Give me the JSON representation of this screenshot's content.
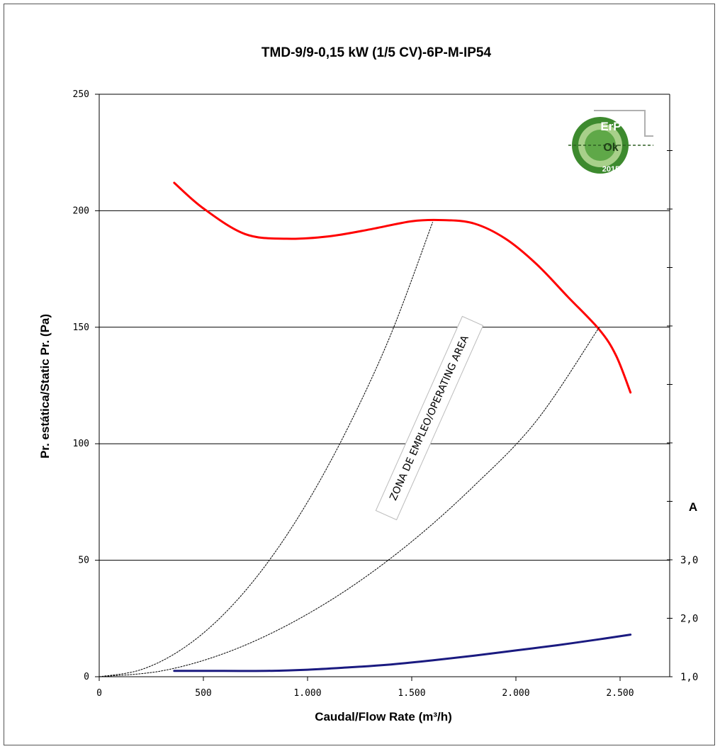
{
  "chart_data": {
    "type": "line",
    "title": "TMD-9/9-0,15 kW (1/5 CV)-6P-M-IP54",
    "xlabel": "Caudal/Flow Rate (m³/h)",
    "ylabel": "Pr. estática/Static Pr. (Pa)",
    "xlim": [
      0,
      2500
    ],
    "ylim": [
      0,
      250
    ],
    "x_ticks": [
      "0",
      "500",
      "1.000",
      "1.500",
      "2.000",
      "2.500"
    ],
    "y_ticks": [
      "0",
      "50",
      "100",
      "150",
      "200",
      "250"
    ],
    "y2_label": "A",
    "y2_ticks": [
      "1,0",
      "2,0",
      "3,0"
    ],
    "y2_ticks_values": [
      1.0,
      2.0,
      3.0
    ],
    "grid": "horizontal",
    "series": [
      {
        "color": "#ff0000",
        "axis": "left",
        "points": [
          [
            360,
            212
          ],
          [
            500,
            201
          ],
          [
            700,
            190
          ],
          [
            900,
            188
          ],
          [
            1100,
            189
          ],
          [
            1300,
            192
          ],
          [
            1500,
            195.5
          ],
          [
            1650,
            196
          ],
          [
            1800,
            194.5
          ],
          [
            1950,
            188
          ],
          [
            2100,
            177
          ],
          [
            2250,
            163
          ],
          [
            2400,
            149
          ],
          [
            2480,
            138
          ],
          [
            2550,
            122
          ]
        ]
      },
      {
        "color": "#1a1a80",
        "axis": "right",
        "points": [
          [
            360,
            1.1
          ],
          [
            600,
            1.1
          ],
          [
            800,
            1.1
          ],
          [
            1000,
            1.12
          ],
          [
            1200,
            1.16
          ],
          [
            1400,
            1.21
          ],
          [
            1600,
            1.28
          ],
          [
            1800,
            1.36
          ],
          [
            2000,
            1.45
          ],
          [
            2200,
            1.54
          ],
          [
            2400,
            1.64
          ],
          [
            2550,
            1.72
          ]
        ]
      },
      {
        "color": "#000000",
        "style": "dotted",
        "axis": "left",
        "points": [
          [
            0,
            0
          ],
          [
            200,
            3
          ],
          [
            400,
            12
          ],
          [
            600,
            27
          ],
          [
            800,
            48
          ],
          [
            1000,
            75
          ],
          [
            1200,
            108
          ],
          [
            1400,
            147
          ],
          [
            1600,
            195
          ]
        ]
      },
      {
        "color": "#000000",
        "style": "dotted",
        "axis": "left",
        "points": [
          [
            0,
            0
          ],
          [
            300,
            2.5
          ],
          [
            600,
            10
          ],
          [
            900,
            22
          ],
          [
            1200,
            38
          ],
          [
            1500,
            58
          ],
          [
            1800,
            82
          ],
          [
            2100,
            110
          ],
          [
            2400,
            150
          ]
        ]
      }
    ],
    "annotations": [
      {
        "text": "ZONA DE EMPLEO/OPERATING AREA"
      }
    ]
  },
  "logo": {
    "line1": "ErP",
    "line2": "Ok",
    "line3": "2015"
  }
}
